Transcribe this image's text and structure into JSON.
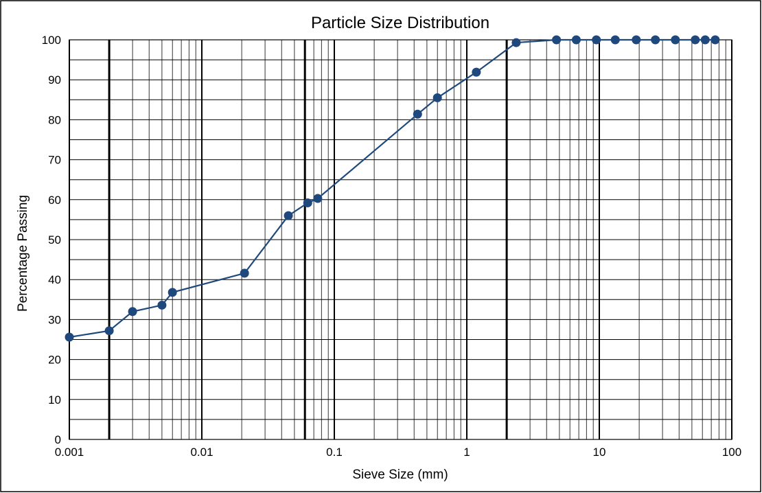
{
  "chart_data": {
    "type": "scatter",
    "title": "Particle Size Distribution",
    "xlabel": "Sieve Size (mm)",
    "ylabel": "Percentage Passing",
    "x_scale": "log",
    "xlim": [
      0.001,
      100
    ],
    "ylim": [
      0,
      100
    ],
    "x_ticks": [
      0.001,
      0.01,
      0.1,
      1,
      10,
      100
    ],
    "x_tick_labels": [
      "0.001",
      "0.01",
      "0.1",
      "1",
      "10",
      "100"
    ],
    "y_ticks": [
      0,
      10,
      20,
      30,
      40,
      50,
      60,
      70,
      80,
      90,
      100
    ],
    "y_tick_labels": [
      "0",
      "10",
      "20",
      "30",
      "40",
      "50",
      "60",
      "70",
      "80",
      "90",
      "100"
    ],
    "grid": true,
    "emphasized_boundaries_mm": [
      0.002,
      0.06,
      2
    ],
    "series_color": "#1F497D",
    "series": [
      {
        "x": [
          0.001,
          0.002,
          0.003,
          0.005,
          0.006,
          0.021,
          0.045,
          0.063,
          0.075,
          0.425,
          0.6,
          1.18,
          2.36,
          4.75,
          6.7,
          9.5,
          13.2,
          19,
          26.5,
          37.5,
          53,
          63,
          75
        ],
        "y": [
          25.6,
          27.2,
          32.0,
          33.6,
          36.8,
          41.6,
          56.0,
          59.2,
          60.3,
          81.4,
          85.5,
          91.9,
          99.3,
          100,
          100,
          100,
          100,
          100,
          100,
          100,
          100,
          100,
          100
        ]
      }
    ]
  }
}
